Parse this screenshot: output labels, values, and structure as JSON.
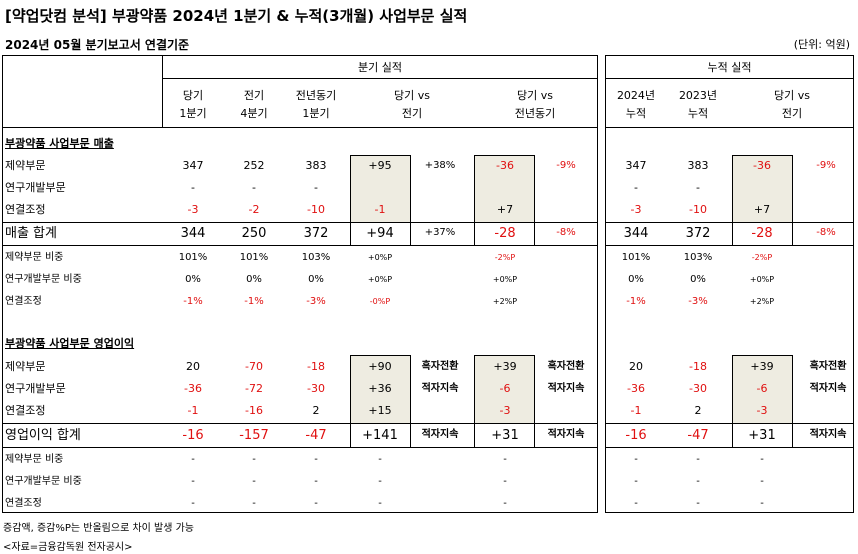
{
  "header": {
    "title": "[약업닷컴 분석] 부광약품 2024년 1분기 & 누적(3개월) 사업부문 실적",
    "subtitle": "2024년 05월 분기보고서 연결기준",
    "unit": "(단위: 억원)"
  },
  "quarter_table": {
    "group_title": "분기 실적",
    "columns": [
      {
        "line1": "당기",
        "line2": "1분기"
      },
      {
        "line1": "전기",
        "line2": "4분기"
      },
      {
        "line1": "전년동기",
        "line2": "1분기"
      },
      {
        "line1": "당기 vs",
        "line2": "전기"
      },
      {
        "line1": "당기 vs",
        "line2": "전년동기"
      }
    ],
    "sales_section": "부광약품 사업부문 매출",
    "sales_rows": [
      {
        "label": "제약부문",
        "cur": "347",
        "prev": "252",
        "yoy": "383",
        "d_prev": "+95",
        "p_prev": "+38%",
        "d_yoy": "-36",
        "p_yoy": "-9%"
      },
      {
        "label": "연구개발부문",
        "cur": "-",
        "prev": "-",
        "yoy": "-",
        "d_prev": "",
        "p_prev": "",
        "d_yoy": "",
        "p_yoy": ""
      },
      {
        "label": "연결조정",
        "cur": "-3",
        "prev": "-2",
        "yoy": "-10",
        "d_prev": "-1",
        "p_prev": "",
        "d_yoy": "+7",
        "p_yoy": ""
      }
    ],
    "sales_total": {
      "label": "매출 합계",
      "cur": "344",
      "prev": "250",
      "yoy": "372",
      "d_prev": "+94",
      "p_prev": "+37%",
      "d_yoy": "-28",
      "p_yoy": "-8%"
    },
    "sales_ratios": [
      {
        "label": "제약부문 비중",
        "cur": "101%",
        "prev": "101%",
        "yoy": "103%",
        "d_prev": "+0%P",
        "d_yoy": "-2%P"
      },
      {
        "label": "연구개발부문 비중",
        "cur": "0%",
        "prev": "0%",
        "yoy": "0%",
        "d_prev": "+0%P",
        "d_yoy": "+0%P"
      },
      {
        "label": "연결조정",
        "cur": "-1%",
        "prev": "-1%",
        "yoy": "-3%",
        "d_prev": "-0%P",
        "d_yoy": "+2%P"
      }
    ],
    "op_section": "부광약품 사업부문 영업이익",
    "op_rows": [
      {
        "label": "제약부문",
        "cur": "20",
        "prev": "-70",
        "yoy": "-18",
        "d_prev": "+90",
        "p_prev": "흑자전환",
        "d_yoy": "+39",
        "p_yoy": "흑자전환"
      },
      {
        "label": "연구개발부문",
        "cur": "-36",
        "prev": "-72",
        "yoy": "-30",
        "d_prev": "+36",
        "p_prev": "적자지속",
        "d_yoy": "-6",
        "p_yoy": "적자지속"
      },
      {
        "label": "연결조정",
        "cur": "-1",
        "prev": "-16",
        "yoy": "2",
        "d_prev": "+15",
        "p_prev": "",
        "d_yoy": "-3",
        "p_yoy": ""
      }
    ],
    "op_total": {
      "label": "영업이익 합계",
      "cur": "-16",
      "prev": "-157",
      "yoy": "-47",
      "d_prev": "+141",
      "p_prev": "적자지속",
      "d_yoy": "+31",
      "p_yoy": "적자지속"
    },
    "op_ratios": [
      {
        "label": "제약부문 비중",
        "cur": "-",
        "prev": "-",
        "yoy": "-",
        "d_prev": "-",
        "d_yoy": "-"
      },
      {
        "label": "연구개발부문 비중",
        "cur": "-",
        "prev": "-",
        "yoy": "-",
        "d_prev": "-",
        "d_yoy": "-"
      },
      {
        "label": "연결조정",
        "cur": "-",
        "prev": "-",
        "yoy": "-",
        "d_prev": "-",
        "d_yoy": "-"
      }
    ]
  },
  "cumulative_table": {
    "group_title": "누적 실적",
    "columns": [
      {
        "line1": "2024년",
        "line2": "누적"
      },
      {
        "line1": "2023년",
        "line2": "누적"
      },
      {
        "line1": "당기 vs",
        "line2": "전기"
      }
    ],
    "sales_rows": [
      {
        "cur": "347",
        "prev": "383",
        "d": "-36",
        "p": "-9%"
      },
      {
        "cur": "-",
        "prev": "-",
        "d": "",
        "p": ""
      },
      {
        "cur": "-3",
        "prev": "-10",
        "d": "+7",
        "p": ""
      }
    ],
    "sales_total": {
      "cur": "344",
      "prev": "372",
      "d": "-28",
      "p": "-8%"
    },
    "sales_ratios": [
      {
        "cur": "101%",
        "prev": "103%",
        "d": "-2%P"
      },
      {
        "cur": "0%",
        "prev": "0%",
        "d": "+0%P"
      },
      {
        "cur": "-1%",
        "prev": "-3%",
        "d": "+2%P"
      }
    ],
    "op_rows": [
      {
        "cur": "20",
        "prev": "-18",
        "d": "+39",
        "p": "흑자전환"
      },
      {
        "cur": "-36",
        "prev": "-30",
        "d": "-6",
        "p": "적자지속"
      },
      {
        "cur": "-1",
        "prev": "2",
        "d": "-3",
        "p": ""
      }
    ],
    "op_total": {
      "cur": "-16",
      "prev": "-47",
      "d": "+31",
      "p": "적자지속"
    },
    "op_ratios": [
      {
        "cur": "-",
        "prev": "-",
        "d": "-"
      },
      {
        "cur": "-",
        "prev": "-",
        "d": "-"
      },
      {
        "cur": "-",
        "prev": "-",
        "d": "-"
      }
    ]
  },
  "footnotes": [
    "증감액, 증감%P는 반올림으로 차이 발생 가능",
    "<자료=금융감독원 전자공시>"
  ]
}
